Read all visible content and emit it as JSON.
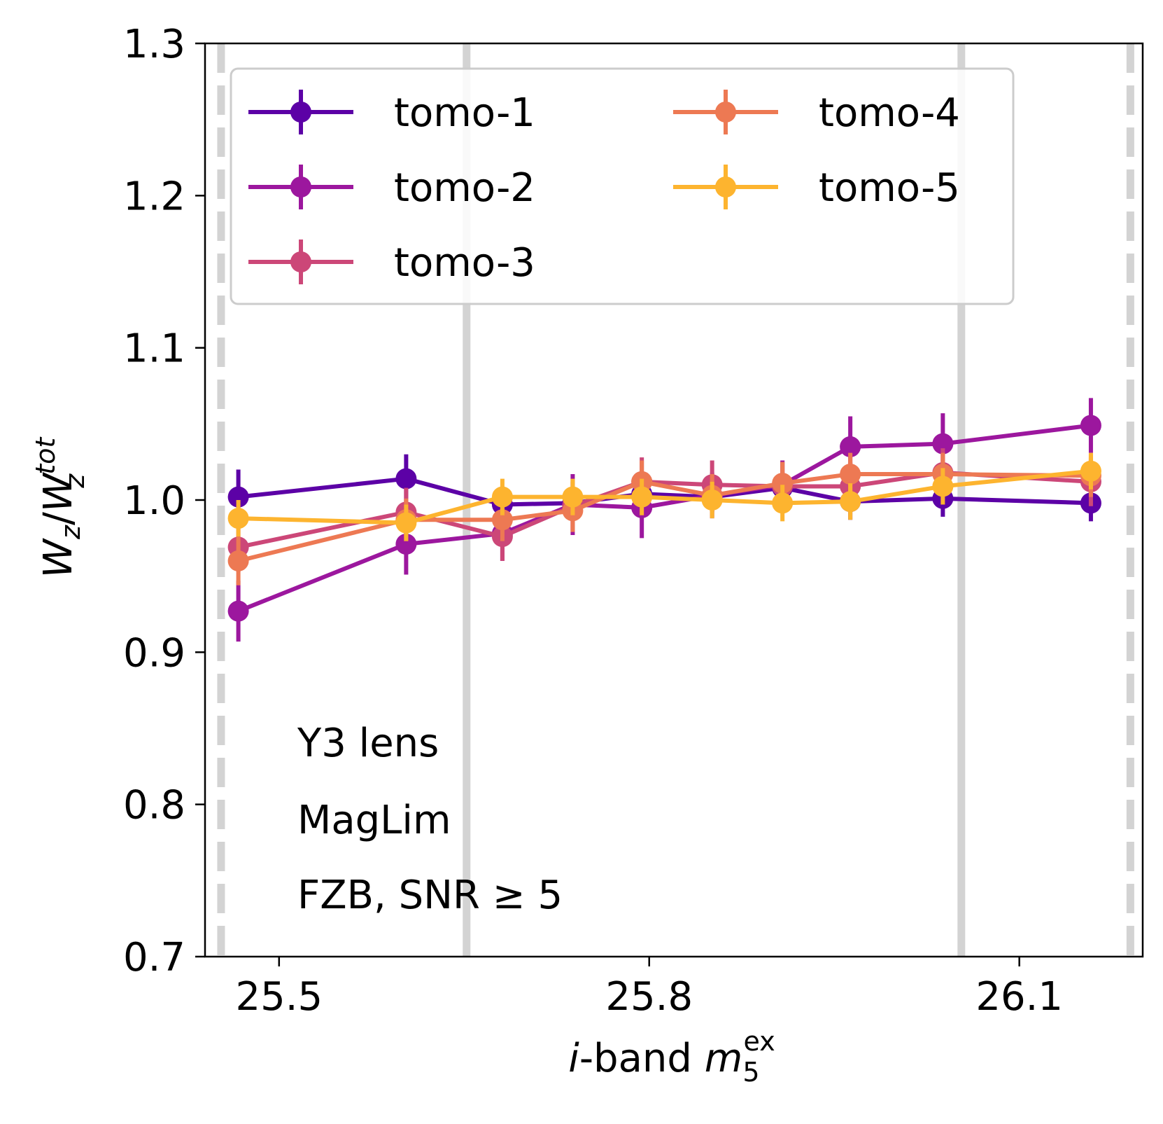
{
  "chart_data": {
    "type": "line",
    "xlabel": "i-band m5ex",
    "xlabel_parts": {
      "i": "i",
      "band": "-band ",
      "m": "m",
      "sub": "5",
      "sup": "ex"
    },
    "ylabel": "Wz/Wz^tot",
    "ylabel_parts": {
      "W1": "W",
      "sub1": "z",
      "slash": "/",
      "W2": "W",
      "sub2": "z",
      "sup2": "tot"
    },
    "xlim": [
      25.44,
      26.2
    ],
    "ylim": [
      0.7,
      1.3
    ],
    "x_ticks": [
      25.5,
      25.8,
      26.1
    ],
    "x_tick_labels": [
      "25.5",
      "25.8",
      "26.1"
    ],
    "y_ticks": [
      0.7,
      0.8,
      0.9,
      1.0,
      1.1,
      1.2,
      1.3
    ],
    "y_tick_labels": [
      "0.7",
      "0.8",
      "0.9",
      "1.0",
      "1.1",
      "1.2",
      "1.3"
    ],
    "grid": false,
    "legend_placement": "top-left, 2 columns",
    "vertical_lines": [
      {
        "x": 25.453,
        "style": "dashed",
        "color": "#d3d3d3"
      },
      {
        "x": 25.652,
        "style": "solid",
        "color": "#d3d3d3"
      },
      {
        "x": 26.053,
        "style": "solid",
        "color": "#d3d3d3"
      },
      {
        "x": 26.19,
        "style": "dashed",
        "color": "#d3d3d3"
      }
    ],
    "series": [
      {
        "name": "tomo-1",
        "color": "#5c01a6",
        "x": [
          25.467,
          25.603,
          25.681,
          25.738,
          25.794,
          25.851,
          25.908,
          25.963,
          26.038,
          26.158
        ],
        "y": [
          1.002,
          1.014,
          0.997,
          0.998,
          1.004,
          1.002,
          1.008,
          0.999,
          1.001,
          0.998
        ],
        "err": [
          0.018,
          0.016,
          0.01,
          0.008,
          0.008,
          0.01,
          0.01,
          0.012,
          0.012,
          0.012
        ]
      },
      {
        "name": "tomo-2",
        "color": "#9c179e",
        "x": [
          25.467,
          25.603,
          25.681,
          25.738,
          25.794,
          25.851,
          25.908,
          25.963,
          26.038,
          26.158
        ],
        "y": [
          0.927,
          0.971,
          0.978,
          0.997,
          0.995,
          1.003,
          1.01,
          1.035,
          1.037,
          1.049
        ],
        "err": [
          0.02,
          0.02,
          0.018,
          0.02,
          0.02,
          0.015,
          0.016,
          0.02,
          0.02,
          0.018
        ]
      },
      {
        "name": "tomo-3",
        "color": "#cc4778",
        "x": [
          25.467,
          25.603,
          25.681,
          25.738,
          25.794,
          25.851,
          25.908,
          25.963,
          26.038,
          26.158
        ],
        "y": [
          0.969,
          0.992,
          0.976,
          0.996,
          1.012,
          1.01,
          1.009,
          1.009,
          1.018,
          1.012
        ],
        "err": [
          0.016,
          0.016,
          0.016,
          0.016,
          0.016,
          0.016,
          0.016,
          0.016,
          0.016,
          0.016
        ]
      },
      {
        "name": "tomo-4",
        "color": "#ed7953",
        "x": [
          25.467,
          25.603,
          25.681,
          25.738,
          25.794,
          25.851,
          25.908,
          25.963,
          26.038,
          26.158
        ],
        "y": [
          0.96,
          0.987,
          0.987,
          0.993,
          1.012,
          1.003,
          1.011,
          1.017,
          1.017,
          1.016
        ],
        "err": [
          0.016,
          0.014,
          0.014,
          0.014,
          0.014,
          0.014,
          0.014,
          0.014,
          0.014,
          0.014
        ]
      },
      {
        "name": "tomo-5",
        "color": "#fdb42f",
        "x": [
          25.467,
          25.603,
          25.681,
          25.738,
          25.794,
          25.851,
          25.908,
          25.963,
          26.038,
          26.158
        ],
        "y": [
          0.988,
          0.985,
          1.002,
          1.002,
          1.002,
          1.0,
          0.998,
          0.999,
          1.009,
          1.019
        ],
        "err": [
          0.012,
          0.012,
          0.012,
          0.012,
          0.012,
          0.012,
          0.012,
          0.012,
          0.012,
          0.012
        ]
      }
    ],
    "annotations": [
      "Y3 lens",
      "MagLim",
      "FZB, SNR ≥ 5"
    ]
  }
}
